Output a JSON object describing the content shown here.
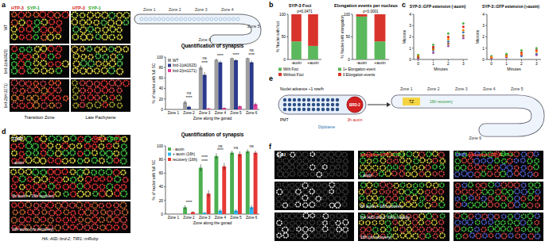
{
  "figure": {
    "panel_labels": [
      "a",
      "b",
      "c",
      "d",
      "e",
      "f"
    ],
    "a": {
      "channels": [
        "HTP-3",
        "SYP-1"
      ],
      "columns": [
        "Transition Zone",
        "Late Pachytene"
      ],
      "rows": [
        "WT",
        "brd-1(ok1623)",
        "brd-2(tm1171)"
      ],
      "zones": [
        "Zone 1",
        "Zone 2",
        "Zone 3",
        "Zone 4",
        "Zone 5",
        "Zone 6"
      ]
    },
    "d": {
      "stage": "TZ/EP",
      "channels": [
        "HTP-3",
        "SYP-1"
      ],
      "rows": [
        "- auxin",
        "3h auxin + 16h recovery",
        "16h auxin (no recovery)"
      ],
      "genotype": "HA::AID::brd-2; TIR1::mRuby"
    },
    "e": {
      "advance": "Nuclei advance ~1 row/h",
      "pmt": "PMT",
      "diplotene": "Diplotene",
      "protein": "BRD-2",
      "treatment": "3h auxin",
      "recovery": "16h recovery",
      "tz": "TZ",
      "zones": [
        "Zone 1",
        "Zone 2",
        "Zone 3",
        "Zone 4",
        "Zone 5",
        "Zone 6"
      ]
    },
    "f": {
      "edu": "EdU",
      "channels": [
        "DAPI",
        "phospho-HTP-3",
        "SYP-1"
      ],
      "rows": [
        "- auxin",
        "3h auxin + 16h recovery",
        "16h (no recovery)"
      ],
      "genotype": "HA::AID::brd-2; TIR1::mRuby"
    }
  },
  "chart_data": [
    {
      "type": "bar",
      "title": "Quantification of synapsis",
      "y_label": "% of nuclei with full SC",
      "x_label": "Zone along the gonad",
      "categories": [
        "Zone 1",
        "Zone 2",
        "Zone 3",
        "Zone 4",
        "Zone 5",
        "Zone 6"
      ],
      "series": [
        {
          "name": "WT",
          "color": "#9e9e9e",
          "values": [
            0,
            14,
            80,
            95,
            98,
            98
          ],
          "errors": [
            0,
            3,
            4,
            2,
            1,
            1
          ]
        },
        {
          "name": "brd-1(ok1623)",
          "color": "#2b3a8c",
          "values": [
            0,
            5,
            66,
            90,
            94,
            90
          ],
          "errors": [
            0,
            2,
            5,
            3,
            2,
            3
          ]
        },
        {
          "name": "brd-2(tm1171)",
          "color": "#e0409a",
          "values": [
            0,
            0,
            2,
            3,
            6,
            10
          ],
          "errors": [
            0,
            0,
            1,
            1,
            2,
            3
          ]
        }
      ],
      "ylim": [
        0,
        100
      ],
      "yticks": [
        0,
        20,
        40,
        60,
        80,
        100
      ],
      "legend": "upper left",
      "annotations": [
        {
          "text": "****",
          "category": "Zone 2"
        },
        {
          "text": "ns",
          "category": "Zone 2"
        },
        {
          "text": "****",
          "category": "Zone 3"
        },
        {
          "text": "ns",
          "category": "Zone 3"
        },
        {
          "text": "****",
          "category": "Zone 4"
        },
        {
          "text": "****",
          "category": "Zone 5"
        },
        {
          "text": "****",
          "category": "Zone 6"
        },
        {
          "text": "ns",
          "category": "Zone 6"
        }
      ]
    },
    {
      "type": "bar",
      "stacked": true,
      "title": "SYP-3 Foci",
      "y_label": "% Nuclei with foci",
      "categories": [
        "-auxin",
        "+auxin"
      ],
      "series": [
        {
          "name": "With Foci",
          "color": "#5cb85c",
          "values": [
            40,
            30
          ]
        },
        {
          "name": "Without Foci",
          "color": "#d9342b",
          "values": [
            60,
            70
          ]
        }
      ],
      "ylim": [
        0,
        100
      ],
      "yticks": [
        0,
        50,
        100
      ],
      "annotations": [
        {
          "text": "p=0.0471"
        }
      ]
    },
    {
      "type": "bar",
      "stacked": true,
      "title": "Elongation events per nucleus",
      "y_label": "% Nuclei with elongation",
      "categories": [
        "-auxin",
        "+auxin"
      ],
      "series": [
        {
          "name": "1+ Elongation event",
          "color": "#5cb85c",
          "values": [
            95,
            40
          ]
        },
        {
          "name": "0 Elongation events",
          "color": "#d9342b",
          "values": [
            5,
            60
          ]
        }
      ],
      "ylim": [
        0,
        100
      ],
      "yticks": [
        0,
        50,
        100
      ],
      "annotations": [
        {
          "text": "p<0.0001"
        }
      ]
    },
    {
      "type": "scatter",
      "title": "SYP-3::GFP extension (-auxin)",
      "x_label": "Minutes",
      "y_label": "Microns",
      "xlim": [
        -0.3,
        3.3
      ],
      "xticks": [
        0,
        1,
        2,
        3
      ],
      "ylim": [
        0,
        4
      ],
      "yticks": [
        0,
        1,
        2,
        3,
        4
      ],
      "series": [
        {
          "color": "#e41a1c",
          "x": [
            0,
            1,
            2,
            3
          ],
          "values": [
            0.3,
            1.1,
            2.0,
            2.9
          ]
        },
        {
          "color": "#377eb8",
          "x": [
            0,
            1,
            2,
            3
          ],
          "values": [
            0.2,
            0.8,
            1.6,
            2.4
          ]
        },
        {
          "color": "#4daf4a",
          "x": [
            0,
            1,
            2,
            3
          ],
          "values": [
            0.4,
            1.3,
            2.3,
            3.2
          ]
        },
        {
          "color": "#984ea3",
          "x": [
            0,
            1,
            2,
            3
          ],
          "values": [
            0.1,
            0.6,
            1.2,
            1.9
          ]
        },
        {
          "color": "#ff7f00",
          "x": [
            0,
            1,
            2,
            3
          ],
          "values": [
            0.3,
            0.9,
            1.8,
            2.6
          ]
        },
        {
          "color": "#a65628",
          "x": [
            0,
            1,
            2,
            3
          ],
          "values": [
            0.2,
            1.0,
            1.4,
            2.1
          ]
        }
      ]
    },
    {
      "type": "scatter",
      "title": "SYP-3::GFP extension (+auxin)",
      "x_label": "Minutes",
      "y_label": "Microns",
      "xlim": [
        -0.3,
        3.3
      ],
      "xticks": [
        0,
        1,
        2,
        3
      ],
      "ylim": [
        0,
        4
      ],
      "yticks": [
        0,
        1,
        2,
        3,
        4
      ],
      "series": [
        {
          "color": "#e41a1c",
          "x": [
            0,
            1,
            2,
            3
          ],
          "values": [
            0.2,
            0.4,
            0.6,
            0.8
          ]
        },
        {
          "color": "#377eb8",
          "x": [
            0,
            1,
            2,
            3
          ],
          "values": [
            0.1,
            0.3,
            0.3,
            0.5
          ]
        },
        {
          "color": "#4daf4a",
          "x": [
            0,
            1,
            2,
            3
          ],
          "values": [
            0.3,
            0.5,
            0.8,
            1.0
          ]
        },
        {
          "color": "#984ea3",
          "x": [
            0,
            1,
            2,
            3
          ],
          "values": [
            0.1,
            0.2,
            0.4,
            0.4
          ]
        },
        {
          "color": "#ff7f00",
          "x": [
            0,
            1,
            2,
            3
          ],
          "values": [
            0.2,
            0.3,
            0.5,
            0.7
          ]
        }
      ]
    },
    {
      "type": "bar",
      "title": "Quantification of synapsis",
      "y_label": "% of nuclei with full SC",
      "x_label": "Zone along the gonad",
      "categories": [
        "Zone 1",
        "Zone 2",
        "Zone 3",
        "Zone 4",
        "Zone 5",
        "Zone 6"
      ],
      "series": [
        {
          "name": "- auxin",
          "color": "#4caf50",
          "values": [
            0,
            10,
            68,
            85,
            90,
            92
          ],
          "errors": [
            0,
            3,
            5,
            4,
            3,
            3
          ]
        },
        {
          "name": "+ auxin (16h)",
          "color": "#29b6f6",
          "values": [
            0,
            0,
            2,
            5,
            5,
            10
          ],
          "errors": [
            0,
            0,
            1,
            2,
            2,
            3
          ]
        },
        {
          "name": "recovery (16h)",
          "color": "#e53935",
          "values": [
            0,
            3,
            30,
            70,
            88,
            90
          ],
          "errors": [
            0,
            1,
            5,
            5,
            4,
            3
          ]
        }
      ],
      "ylim": [
        0,
        100
      ],
      "yticks": [
        0,
        20,
        40,
        60,
        80,
        100
      ],
      "legend": "upper left",
      "annotations": [
        {
          "text": "****",
          "category": "Zone 2"
        },
        {
          "text": "****",
          "category": "Zone 3"
        },
        {
          "text": "****",
          "category": "Zone 3"
        },
        {
          "text": "****",
          "category": "Zone 4"
        },
        {
          "text": "ns",
          "category": "Zone 4"
        },
        {
          "text": "ns",
          "category": "Zone 5"
        },
        {
          "text": "ns",
          "category": "Zone 6"
        }
      ]
    }
  ]
}
